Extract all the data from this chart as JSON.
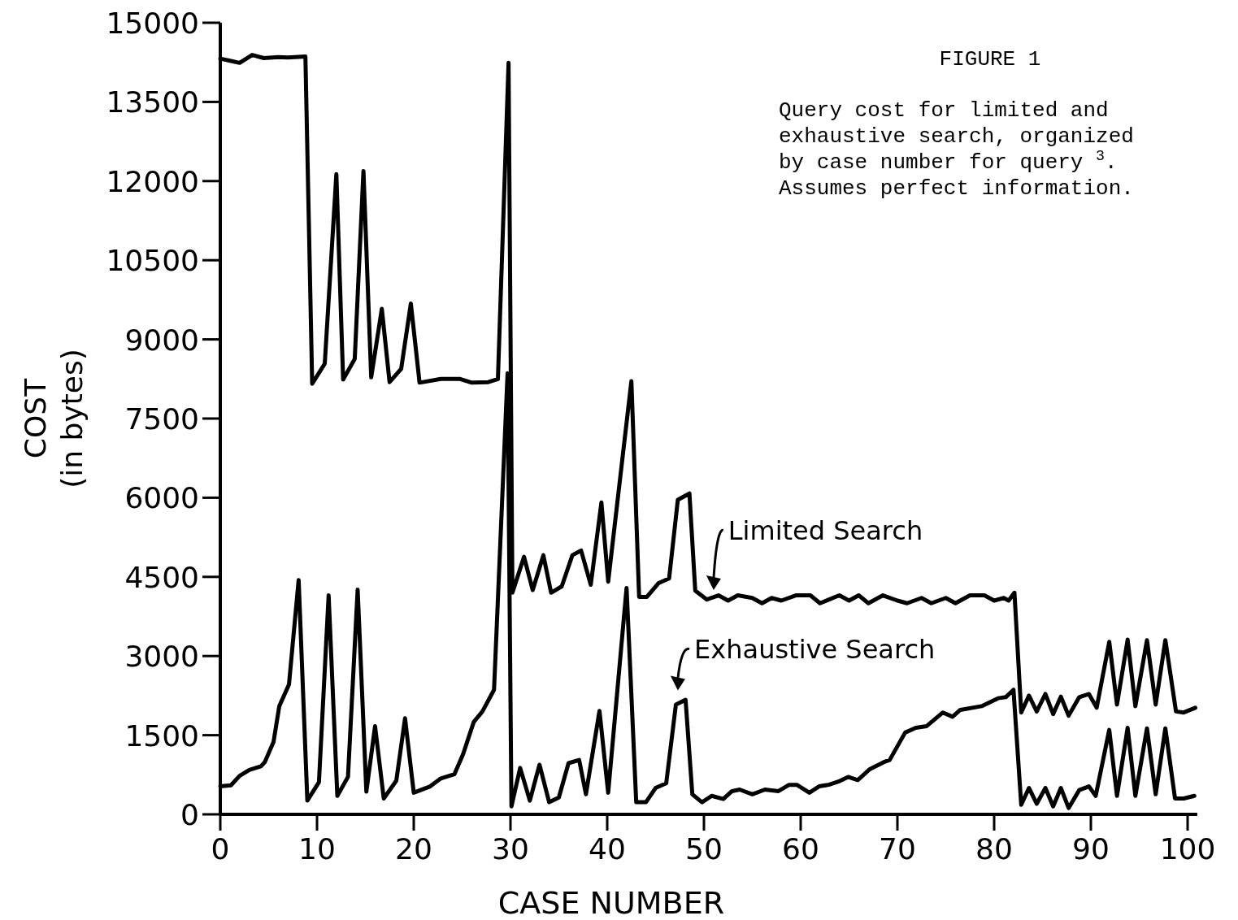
{
  "chart_data": {
    "type": "line",
    "title": "FIGURE 1",
    "subtitle": "Query cost for limited and exhaustive search, organized by case number for query $^{3}$. Assumes perfect information.",
    "xlabel": "CASE NUMBER",
    "ylabel": "COST\n(in bytes)",
    "xlim": [
      0,
      101
    ],
    "xticks": [
      0,
      10,
      20,
      30,
      40,
      50,
      60,
      70,
      80,
      90,
      100
    ],
    "ylim": [
      0,
      15000
    ],
    "yticks": [
      0,
      1500,
      3000,
      4500,
      6000,
      7500,
      9000,
      10500,
      12000,
      13500,
      15000
    ],
    "grid": false,
    "legend": "right",
    "marker": "none",
    "line_style": "solid",
    "series": [
      {
        "name": "Limited Search",
        "color": "#000000",
        "x": [
          0,
          1,
          2,
          3.3,
          4.5,
          6,
          7,
          8.8,
          9.5,
          10.8,
          12,
          12.7,
          13.9,
          14.8,
          15.6,
          16.7,
          17.5,
          18.7,
          19.7,
          20.6,
          22.8,
          24.8,
          26,
          27.7,
          28.7,
          29.8,
          30.2,
          31.4,
          32.3,
          33.4,
          34.2,
          35.3,
          36.4,
          37.3,
          38.3,
          39.4,
          40.1,
          42.5,
          43.3,
          44.1,
          45.3,
          46.4,
          47.3,
          48.5,
          49.1,
          50.3,
          51.5,
          52.5,
          53.5,
          55,
          56,
          57,
          58,
          59.5,
          61,
          62,
          64,
          65,
          66,
          67,
          68.5,
          70,
          71,
          72.5,
          73.5,
          75,
          76,
          77.5,
          79,
          80,
          81,
          81.5,
          82.1,
          82.8,
          83.6,
          84.4,
          85.3,
          86.1,
          86.9,
          87.7,
          88.8,
          89.8,
          90.6,
          91.9,
          92.7,
          93.8,
          94.6,
          95.8,
          96.7,
          97.7,
          98.8,
          99.6,
          100.8
        ],
        "values": [
          14320,
          14280,
          14240,
          14390,
          14330,
          14350,
          14340,
          14360,
          8160,
          8540,
          12130,
          8240,
          8630,
          12190,
          8280,
          9580,
          8190,
          8440,
          9680,
          8180,
          8250,
          8250,
          8180,
          8190,
          8250,
          14240,
          4200,
          4880,
          4250,
          4910,
          4200,
          4320,
          4910,
          5000,
          4350,
          5910,
          4410,
          8210,
          4120,
          4120,
          4380,
          4470,
          5960,
          6080,
          4240,
          4070,
          4150,
          4050,
          4150,
          4100,
          4000,
          4100,
          4050,
          4150,
          4150,
          4000,
          4150,
          4050,
          4150,
          4000,
          4150,
          4050,
          4000,
          4100,
          4000,
          4100,
          4000,
          4150,
          4150,
          4050,
          4100,
          4050,
          4200,
          1930,
          2250,
          1950,
          2280,
          1900,
          2230,
          1870,
          2220,
          2280,
          2020,
          3270,
          2080,
          3310,
          2050,
          3300,
          2080,
          3300,
          1950,
          1930,
          2020
        ]
      },
      {
        "name": "Exhaustive Search",
        "color": "#000000",
        "x": [
          0,
          1.1,
          2,
          3,
          4.2,
          4.6,
          5.5,
          6.1,
          7.1,
          8.1,
          9,
          10.2,
          11.2,
          12.1,
          13.2,
          14.2,
          15.1,
          16,
          16.9,
          18.2,
          19.1,
          20,
          21.7,
          22.8,
          24.2,
          25.1,
          26.2,
          27.1,
          28.3,
          29.7,
          30.1,
          31,
          32,
          33,
          34,
          35,
          36,
          37.1,
          37.8,
          39.2,
          40.1,
          42,
          43,
          44,
          45,
          46.1,
          47.1,
          48.1,
          48.8,
          49.8,
          50.8,
          52,
          52.9,
          53.7,
          55,
          56.3,
          57.7,
          58.8,
          59.6,
          60.9,
          61.9,
          62.9,
          63.9,
          64.9,
          65.9,
          67.1,
          68.6,
          69.2,
          70.8,
          71.9,
          73,
          74.7,
          75.7,
          76.5,
          78.7,
          80.4,
          81.2,
          82,
          82.8,
          83.6,
          84.4,
          85.3,
          86.1,
          86.9,
          87.7,
          88.8,
          89.8,
          90.5,
          91.9,
          92.7,
          93.8,
          94.6,
          95.8,
          96.7,
          97.7,
          98.7,
          99.6,
          100.7
        ],
        "values": [
          530,
          550,
          730,
          840,
          910,
          990,
          1370,
          2050,
          2460,
          4440,
          260,
          610,
          4150,
          350,
          710,
          4260,
          430,
          1670,
          300,
          640,
          1820,
          410,
          530,
          680,
          760,
          1140,
          1750,
          1950,
          2360,
          8360,
          150,
          880,
          260,
          940,
          230,
          320,
          970,
          1030,
          380,
          1960,
          410,
          4290,
          230,
          230,
          500,
          590,
          2080,
          2170,
          380,
          230,
          350,
          290,
          440,
          470,
          380,
          470,
          440,
          560,
          560,
          410,
          530,
          560,
          620,
          710,
          650,
          850,
          990,
          1030,
          1550,
          1640,
          1670,
          1930,
          1850,
          1980,
          2050,
          2200,
          2220,
          2360,
          180,
          500,
          200,
          500,
          150,
          500,
          120,
          460,
          530,
          350,
          1600,
          350,
          1640,
          350,
          1630,
          380,
          1630,
          300,
          300,
          350
        ]
      }
    ]
  }
}
